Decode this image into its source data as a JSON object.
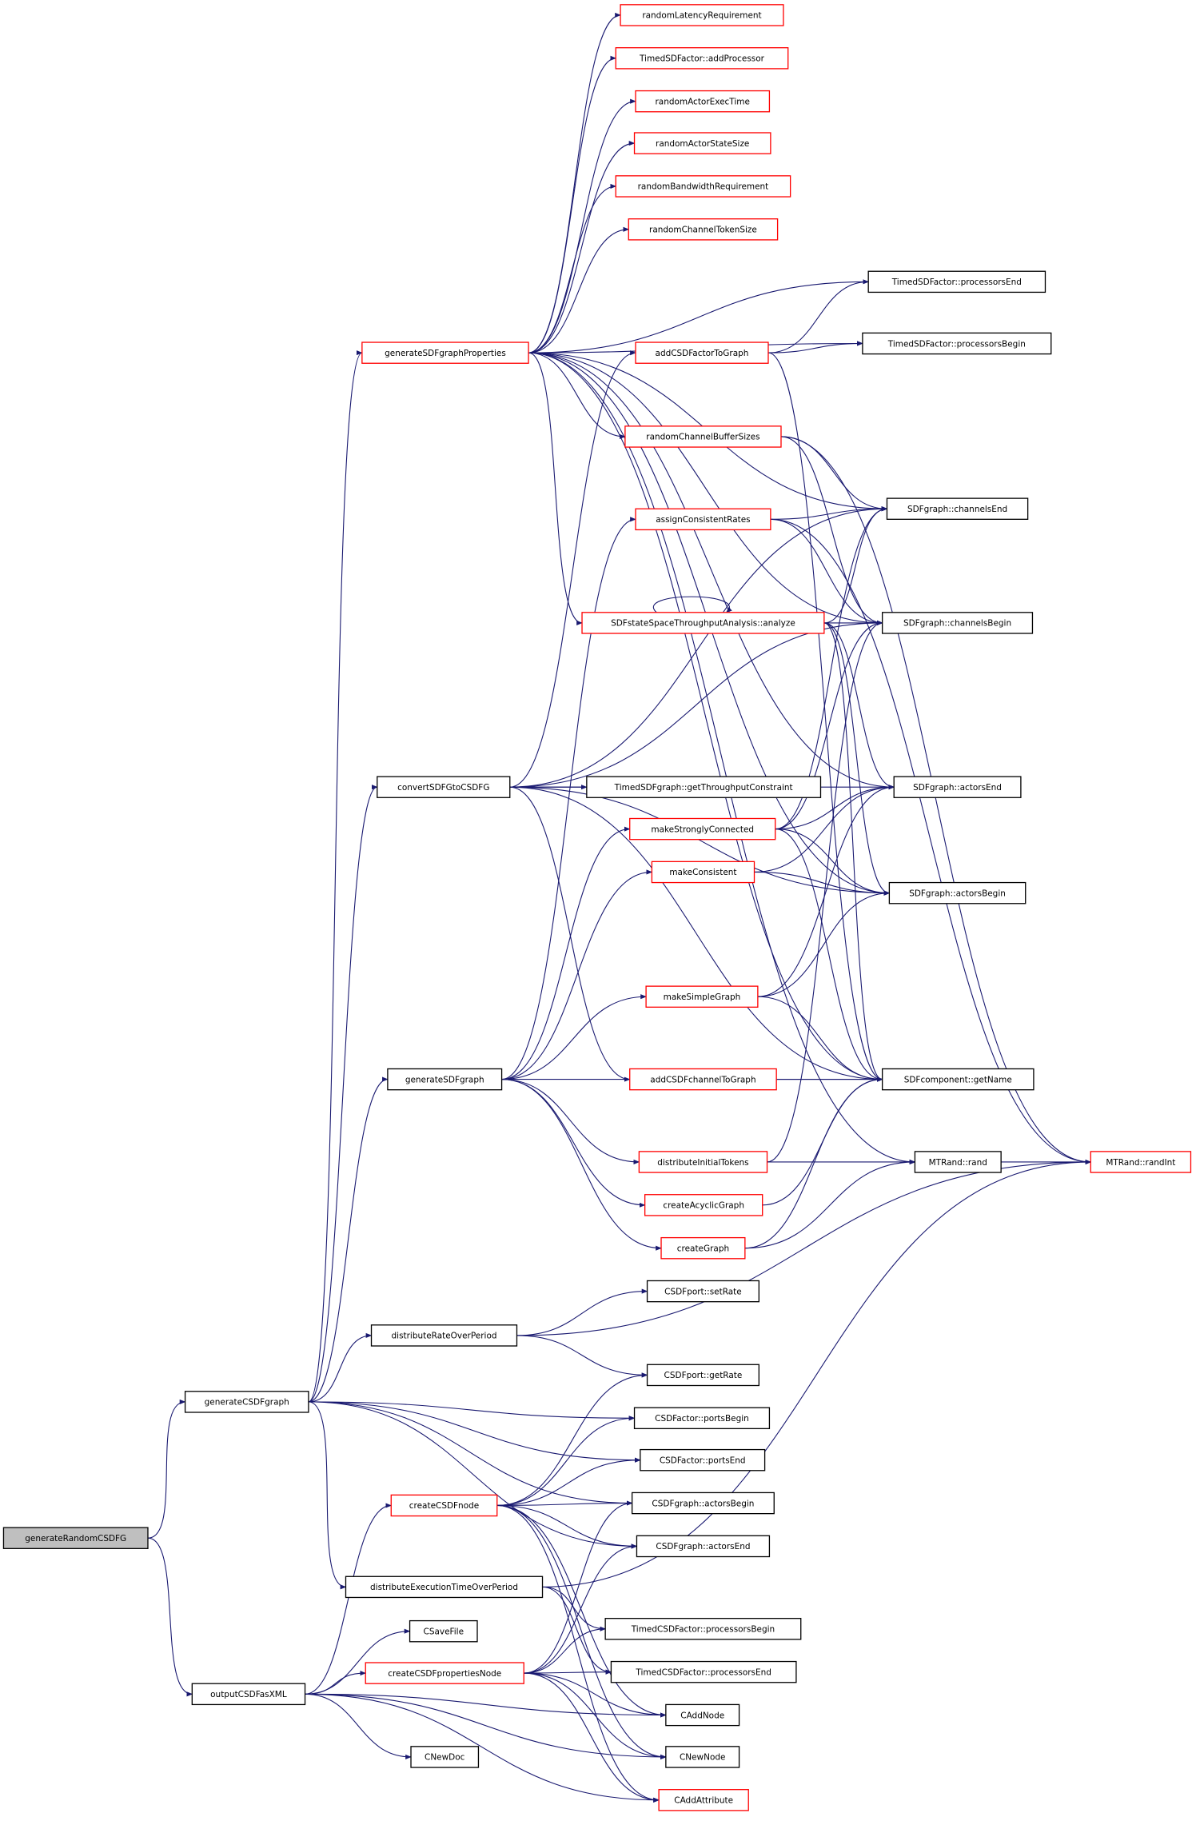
{
  "colors": {
    "edge": "#191970",
    "root_fill": "#bfbfbf",
    "truncated_border": "#ff0000",
    "normal_border": "#000000"
  },
  "nodes": [
    {
      "id": "n0",
      "label": "generateRandomCSDFG",
      "border": "black",
      "root": true
    },
    {
      "id": "n1",
      "label": "generateCSDFgraph",
      "border": "black"
    },
    {
      "id": "n2",
      "label": "outputCSDFasXML",
      "border": "black"
    },
    {
      "id": "n3",
      "label": "generateSDFgraphProperties",
      "border": "red"
    },
    {
      "id": "n4",
      "label": "convertSDFGtoCSDFG",
      "border": "black"
    },
    {
      "id": "n5",
      "label": "generateSDFgraph",
      "border": "black"
    },
    {
      "id": "n6",
      "label": "distributeRateOverPeriod",
      "border": "black"
    },
    {
      "id": "n7",
      "label": "distributeExecutionTimeOverPeriod",
      "border": "black"
    },
    {
      "id": "n8",
      "label": "createCSDFnode",
      "border": "red"
    },
    {
      "id": "n9",
      "label": "CSaveFile",
      "border": "black"
    },
    {
      "id": "n10",
      "label": "createCSDFpropertiesNode",
      "border": "red"
    },
    {
      "id": "n11",
      "label": "CNewDoc",
      "border": "black"
    },
    {
      "id": "n12",
      "label": "randomLatencyRequirement",
      "border": "red"
    },
    {
      "id": "n13",
      "label": "TimedSDFactor::addProcessor",
      "border": "red"
    },
    {
      "id": "n14",
      "label": "randomActorExecTime",
      "border": "red"
    },
    {
      "id": "n15",
      "label": "randomActorStateSize",
      "border": "red"
    },
    {
      "id": "n16",
      "label": "randomBandwidthRequirement",
      "border": "red"
    },
    {
      "id": "n17",
      "label": "randomChannelTokenSize",
      "border": "red"
    },
    {
      "id": "n18",
      "label": "addCSDFactorToGraph",
      "border": "red"
    },
    {
      "id": "n19",
      "label": "randomChannelBufferSizes",
      "border": "red"
    },
    {
      "id": "n20",
      "label": "assignConsistentRates",
      "border": "red"
    },
    {
      "id": "n21",
      "label": "SDFstateSpaceThroughputAnalysis::analyze",
      "border": "red"
    },
    {
      "id": "n22",
      "label": "TimedSDFgraph::getThroughputConstraint",
      "border": "black"
    },
    {
      "id": "n23",
      "label": "makeStronglyConnected",
      "border": "red"
    },
    {
      "id": "n24",
      "label": "makeConsistent",
      "border": "red"
    },
    {
      "id": "n25",
      "label": "makeSimpleGraph",
      "border": "red"
    },
    {
      "id": "n26",
      "label": "addCSDFchannelToGraph",
      "border": "red"
    },
    {
      "id": "n27",
      "label": "distributeInitialTokens",
      "border": "red"
    },
    {
      "id": "n28",
      "label": "createAcyclicGraph",
      "border": "red"
    },
    {
      "id": "n29",
      "label": "createGraph",
      "border": "red"
    },
    {
      "id": "n30",
      "label": "CSDFport::setRate",
      "border": "black"
    },
    {
      "id": "n31",
      "label": "CSDFport::getRate",
      "border": "black"
    },
    {
      "id": "n32",
      "label": "CSDFactor::portsBegin",
      "border": "black"
    },
    {
      "id": "n33",
      "label": "CSDFactor::portsEnd",
      "border": "black"
    },
    {
      "id": "n34",
      "label": "CSDFgraph::actorsBegin",
      "border": "black"
    },
    {
      "id": "n35",
      "label": "CSDFgraph::actorsEnd",
      "border": "black"
    },
    {
      "id": "n36",
      "label": "TimedCSDFactor::processorsBegin",
      "border": "black"
    },
    {
      "id": "n37",
      "label": "TimedCSDFactor::processorsEnd",
      "border": "black"
    },
    {
      "id": "n38",
      "label": "CAddNode",
      "border": "black"
    },
    {
      "id": "n39",
      "label": "CNewNode",
      "border": "black"
    },
    {
      "id": "n40",
      "label": "CAddAttribute",
      "border": "red"
    },
    {
      "id": "n41",
      "label": "TimedSDFactor::processorsEnd",
      "border": "black"
    },
    {
      "id": "n42",
      "label": "TimedSDFactor::processorsBegin",
      "border": "black"
    },
    {
      "id": "n43",
      "label": "SDFgraph::channelsEnd",
      "border": "black"
    },
    {
      "id": "n44",
      "label": "SDFgraph::channelsBegin",
      "border": "black"
    },
    {
      "id": "n45",
      "label": "SDFgraph::actorsEnd",
      "border": "black"
    },
    {
      "id": "n46",
      "label": "SDFgraph::actorsBegin",
      "border": "black"
    },
    {
      "id": "n47",
      "label": "SDFcomponent::getName",
      "border": "black"
    },
    {
      "id": "n48",
      "label": "MTRand::rand",
      "border": "black"
    },
    {
      "id": "n49",
      "label": "MTRand::randInt",
      "border": "red"
    }
  ],
  "edges": [
    [
      "n0",
      "n1"
    ],
    [
      "n0",
      "n2"
    ],
    [
      "n1",
      "n3"
    ],
    [
      "n1",
      "n4"
    ],
    [
      "n1",
      "n5"
    ],
    [
      "n1",
      "n6"
    ],
    [
      "n1",
      "n32"
    ],
    [
      "n1",
      "n33"
    ],
    [
      "n1",
      "n34"
    ],
    [
      "n1",
      "n35"
    ],
    [
      "n1",
      "n7"
    ],
    [
      "n3",
      "n12"
    ],
    [
      "n3",
      "n13"
    ],
    [
      "n3",
      "n14"
    ],
    [
      "n3",
      "n15"
    ],
    [
      "n3",
      "n16"
    ],
    [
      "n3",
      "n17"
    ],
    [
      "n3",
      "n41"
    ],
    [
      "n3",
      "n42"
    ],
    [
      "n3",
      "n19"
    ],
    [
      "n3",
      "n43"
    ],
    [
      "n3",
      "n21"
    ],
    [
      "n3",
      "n44"
    ],
    [
      "n3",
      "n45"
    ],
    [
      "n3",
      "n46"
    ],
    [
      "n3",
      "n47"
    ],
    [
      "n3",
      "n48"
    ],
    [
      "n18",
      "n41"
    ],
    [
      "n18",
      "n42"
    ],
    [
      "n18",
      "n47"
    ],
    [
      "n19",
      "n43"
    ],
    [
      "n19",
      "n44"
    ],
    [
      "n19",
      "n49"
    ],
    [
      "n20",
      "n43"
    ],
    [
      "n20",
      "n44"
    ],
    [
      "n20",
      "n49"
    ],
    [
      "n21",
      "n21"
    ],
    [
      "n21",
      "n43"
    ],
    [
      "n21",
      "n44"
    ],
    [
      "n21",
      "n45"
    ],
    [
      "n21",
      "n46"
    ],
    [
      "n21",
      "n47"
    ],
    [
      "n4",
      "n18"
    ],
    [
      "n4",
      "n43"
    ],
    [
      "n4",
      "n44"
    ],
    [
      "n4",
      "n22"
    ],
    [
      "n4",
      "n45"
    ],
    [
      "n4",
      "n46"
    ],
    [
      "n4",
      "n26"
    ],
    [
      "n4",
      "n47"
    ],
    [
      "n23",
      "n43"
    ],
    [
      "n23",
      "n44"
    ],
    [
      "n23",
      "n45"
    ],
    [
      "n23",
      "n46"
    ],
    [
      "n23",
      "n47"
    ],
    [
      "n24",
      "n45"
    ],
    [
      "n24",
      "n46"
    ],
    [
      "n25",
      "n45"
    ],
    [
      "n25",
      "n46"
    ],
    [
      "n25",
      "n47"
    ],
    [
      "n5",
      "n20"
    ],
    [
      "n5",
      "n23"
    ],
    [
      "n5",
      "n24"
    ],
    [
      "n5",
      "n25"
    ],
    [
      "n5",
      "n27"
    ],
    [
      "n5",
      "n28"
    ],
    [
      "n5",
      "n29"
    ],
    [
      "n5",
      "n47"
    ],
    [
      "n26",
      "n47"
    ],
    [
      "n27",
      "n48"
    ],
    [
      "n27",
      "n44"
    ],
    [
      "n48",
      "n49"
    ],
    [
      "n28",
      "n47"
    ],
    [
      "n29",
      "n48"
    ],
    [
      "n29",
      "n47"
    ],
    [
      "n6",
      "n30"
    ],
    [
      "n6",
      "n31"
    ],
    [
      "n6",
      "n49"
    ],
    [
      "n8",
      "n31"
    ],
    [
      "n8",
      "n32"
    ],
    [
      "n8",
      "n33"
    ],
    [
      "n8",
      "n34"
    ],
    [
      "n8",
      "n35"
    ],
    [
      "n8",
      "n38"
    ],
    [
      "n8",
      "n39"
    ],
    [
      "n8",
      "n40"
    ],
    [
      "n7",
      "n36"
    ],
    [
      "n7",
      "n37"
    ],
    [
      "n7",
      "n49"
    ],
    [
      "n10",
      "n36"
    ],
    [
      "n10",
      "n37"
    ],
    [
      "n10",
      "n34"
    ],
    [
      "n10",
      "n35"
    ],
    [
      "n10",
      "n38"
    ],
    [
      "n10",
      "n39"
    ],
    [
      "n10",
      "n40"
    ],
    [
      "n2",
      "n8"
    ],
    [
      "n2",
      "n9"
    ],
    [
      "n2",
      "n10"
    ],
    [
      "n2",
      "n11"
    ],
    [
      "n2",
      "n38"
    ],
    [
      "n2",
      "n39"
    ],
    [
      "n2",
      "n40"
    ]
  ]
}
